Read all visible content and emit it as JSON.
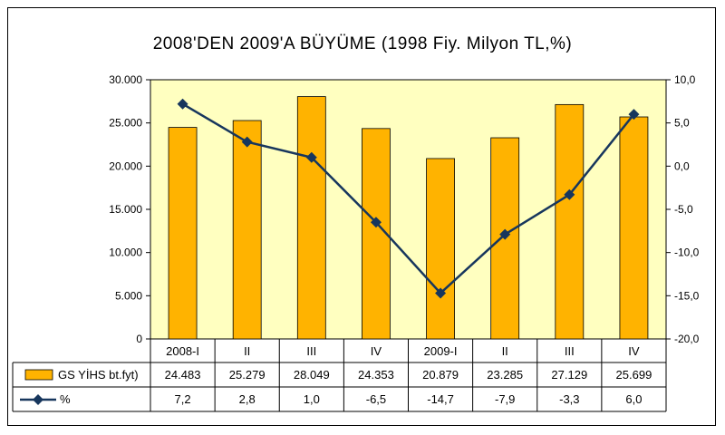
{
  "chart_data": {
    "type": "bar",
    "title": "2008'DEN 2009'A BÜYÜME    (1998 Fiy. Milyon TL,%)",
    "categories": [
      "2008-I",
      "II",
      "III",
      "IV",
      "2009-I",
      "II",
      "III",
      "IV"
    ],
    "series": [
      {
        "name": "GS YİHS bt.fyt)",
        "type": "bar",
        "axis": "left",
        "values": [
          24483,
          25279,
          28049,
          24353,
          20879,
          23285,
          27129,
          25699
        ],
        "labels": [
          "24.483",
          "25.279",
          "28.049",
          "24.353",
          "20.879",
          "23.285",
          "27.129",
          "25.699"
        ],
        "color": "#FFB300"
      },
      {
        "name": "%",
        "type": "line",
        "axis": "right",
        "values": [
          7.2,
          2.8,
          1.0,
          -6.5,
          -14.7,
          -7.9,
          -3.3,
          6.0
        ],
        "labels": [
          "7,2",
          "2,8",
          "1,0",
          "-6,5",
          "-14,7",
          "-7,9",
          "-3,3",
          "6,0"
        ],
        "color": "#17365D"
      }
    ],
    "y_left": {
      "ylim": [
        0,
        30000
      ],
      "ticks": [
        0,
        5000,
        10000,
        15000,
        20000,
        25000,
        30000
      ],
      "tick_labels": [
        "0",
        "5.000",
        "10.000",
        "15.000",
        "20.000",
        "25.000",
        "30.000"
      ]
    },
    "y_right": {
      "ylim": [
        -20,
        10
      ],
      "ticks": [
        -20,
        -15,
        -10,
        -5,
        0,
        5,
        10
      ],
      "tick_labels": [
        "-20,0",
        "-15,0",
        "-10,0",
        "-5,0",
        "0,0",
        "5,0",
        "10,0"
      ]
    },
    "plot_background": "#FFFFC0",
    "data_table": true
  }
}
